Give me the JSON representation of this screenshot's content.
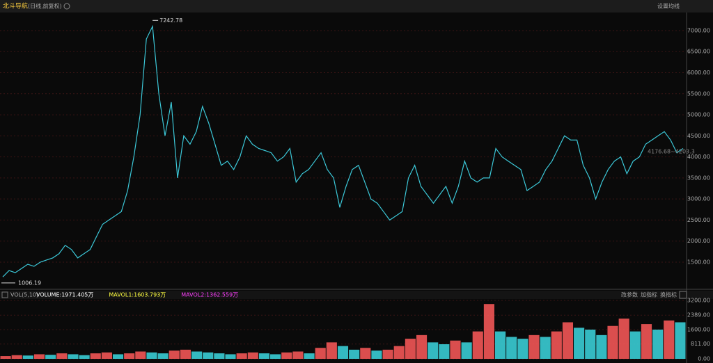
{
  "header": {
    "title": "北斗导航",
    "subtitle": "(日线,前复权)",
    "ma_settings": "设置均线"
  },
  "chart_data": [
    {
      "type": "line",
      "color": "#3cc8d8",
      "values": [
        1150,
        1300,
        1250,
        1350,
        1450,
        1400,
        1500,
        1550,
        1600,
        1700,
        1900,
        1800,
        1600,
        1700,
        1800,
        2100,
        2400,
        2500,
        2600,
        2700,
        3200,
        4000,
        5000,
        6800,
        7100,
        5500,
        4500,
        5300,
        3500,
        4500,
        4300,
        4600,
        5200,
        4800,
        4300,
        3800,
        3900,
        3700,
        4000,
        4500,
        4300,
        4200,
        4150,
        4100,
        3900,
        4000,
        4200,
        3400,
        3600,
        3700,
        3900,
        4100,
        3700,
        3500,
        2800,
        3300,
        3700,
        3800,
        3400,
        3000,
        2900,
        2700,
        2500,
        2600,
        2700,
        3500,
        3800,
        3300,
        3100,
        2900,
        3100,
        3300,
        2900,
        3300,
        3900,
        3500,
        3400,
        3500,
        3500,
        4200,
        4000,
        3900,
        3800,
        3700,
        3200,
        3300,
        3400,
        3700,
        3900,
        4200,
        4500,
        4400,
        4400,
        3800,
        3500,
        3000,
        3400,
        3700,
        3900,
        4000,
        3600,
        3900,
        4000,
        4300,
        4400,
        4500,
        4600,
        4400,
        4100,
        4200
      ],
      "ylim": [
        872,
        7429
      ],
      "yticks": [
        {
          "value": 1500,
          "label": "1500.00"
        },
        {
          "value": 2000,
          "label": "2000.00"
        },
        {
          "value": 2500,
          "label": "2500.00"
        },
        {
          "value": 3000,
          "label": "3000.00"
        },
        {
          "value": 3500,
          "label": "3500.00"
        },
        {
          "value": 4000,
          "label": "4000.00"
        },
        {
          "value": 4500,
          "label": "4500.00"
        },
        {
          "value": 5000,
          "label": "5000.00"
        },
        {
          "value": 5500,
          "label": "5500.00"
        },
        {
          "value": 6000,
          "label": "6000.00"
        },
        {
          "value": 6500,
          "label": "6500.00"
        },
        {
          "value": 7000,
          "label": "7000.00"
        }
      ],
      "grid": true,
      "high_label": {
        "value": 7242.78,
        "label": "7242.78"
      },
      "low_label": {
        "value": 1006.19,
        "label": "1006.19"
      },
      "range_label": "4176.68~4203.3"
    },
    {
      "type": "bar",
      "indicator": "VOL(5,10)",
      "legend": [
        {
          "name": "VOLUME:1971.405万",
          "color": "#ffffff"
        },
        {
          "name": "MAVOL1:1603.793万",
          "color": "#ffff40"
        },
        {
          "name": "MAVOL2:1362.559万",
          "color": "#ff40ff"
        }
      ],
      "buttons": [
        "改参数",
        "加指标",
        "换指标"
      ],
      "up_color": "#ff5a5a",
      "down_color": "#3cd8e0",
      "values": [
        150,
        200,
        180,
        250,
        220,
        300,
        250,
        200,
        300,
        350,
        250,
        300,
        400,
        350,
        300,
        450,
        500,
        400,
        350,
        300,
        250,
        300,
        350,
        300,
        250,
        350,
        400,
        300,
        600,
        900,
        700,
        500,
        600,
        450,
        500,
        700,
        1100,
        1300,
        900,
        800,
        1000,
        900,
        1500,
        3000,
        1500,
        1200,
        1100,
        1300,
        1200,
        1500,
        2000,
        1700,
        1600,
        1300,
        1800,
        2200,
        1500,
        1900,
        1600,
        2100,
        2000
      ],
      "ylim": [
        0,
        3350
      ],
      "yticks": [
        {
          "value": 0,
          "label": "0.00"
        },
        {
          "value": 811,
          "label": "811.00"
        },
        {
          "value": 1600,
          "label": "1600.00"
        },
        {
          "value": 2389,
          "label": "2389.00"
        },
        {
          "value": 3200,
          "label": "3200.00"
        }
      ],
      "grid": true
    }
  ]
}
